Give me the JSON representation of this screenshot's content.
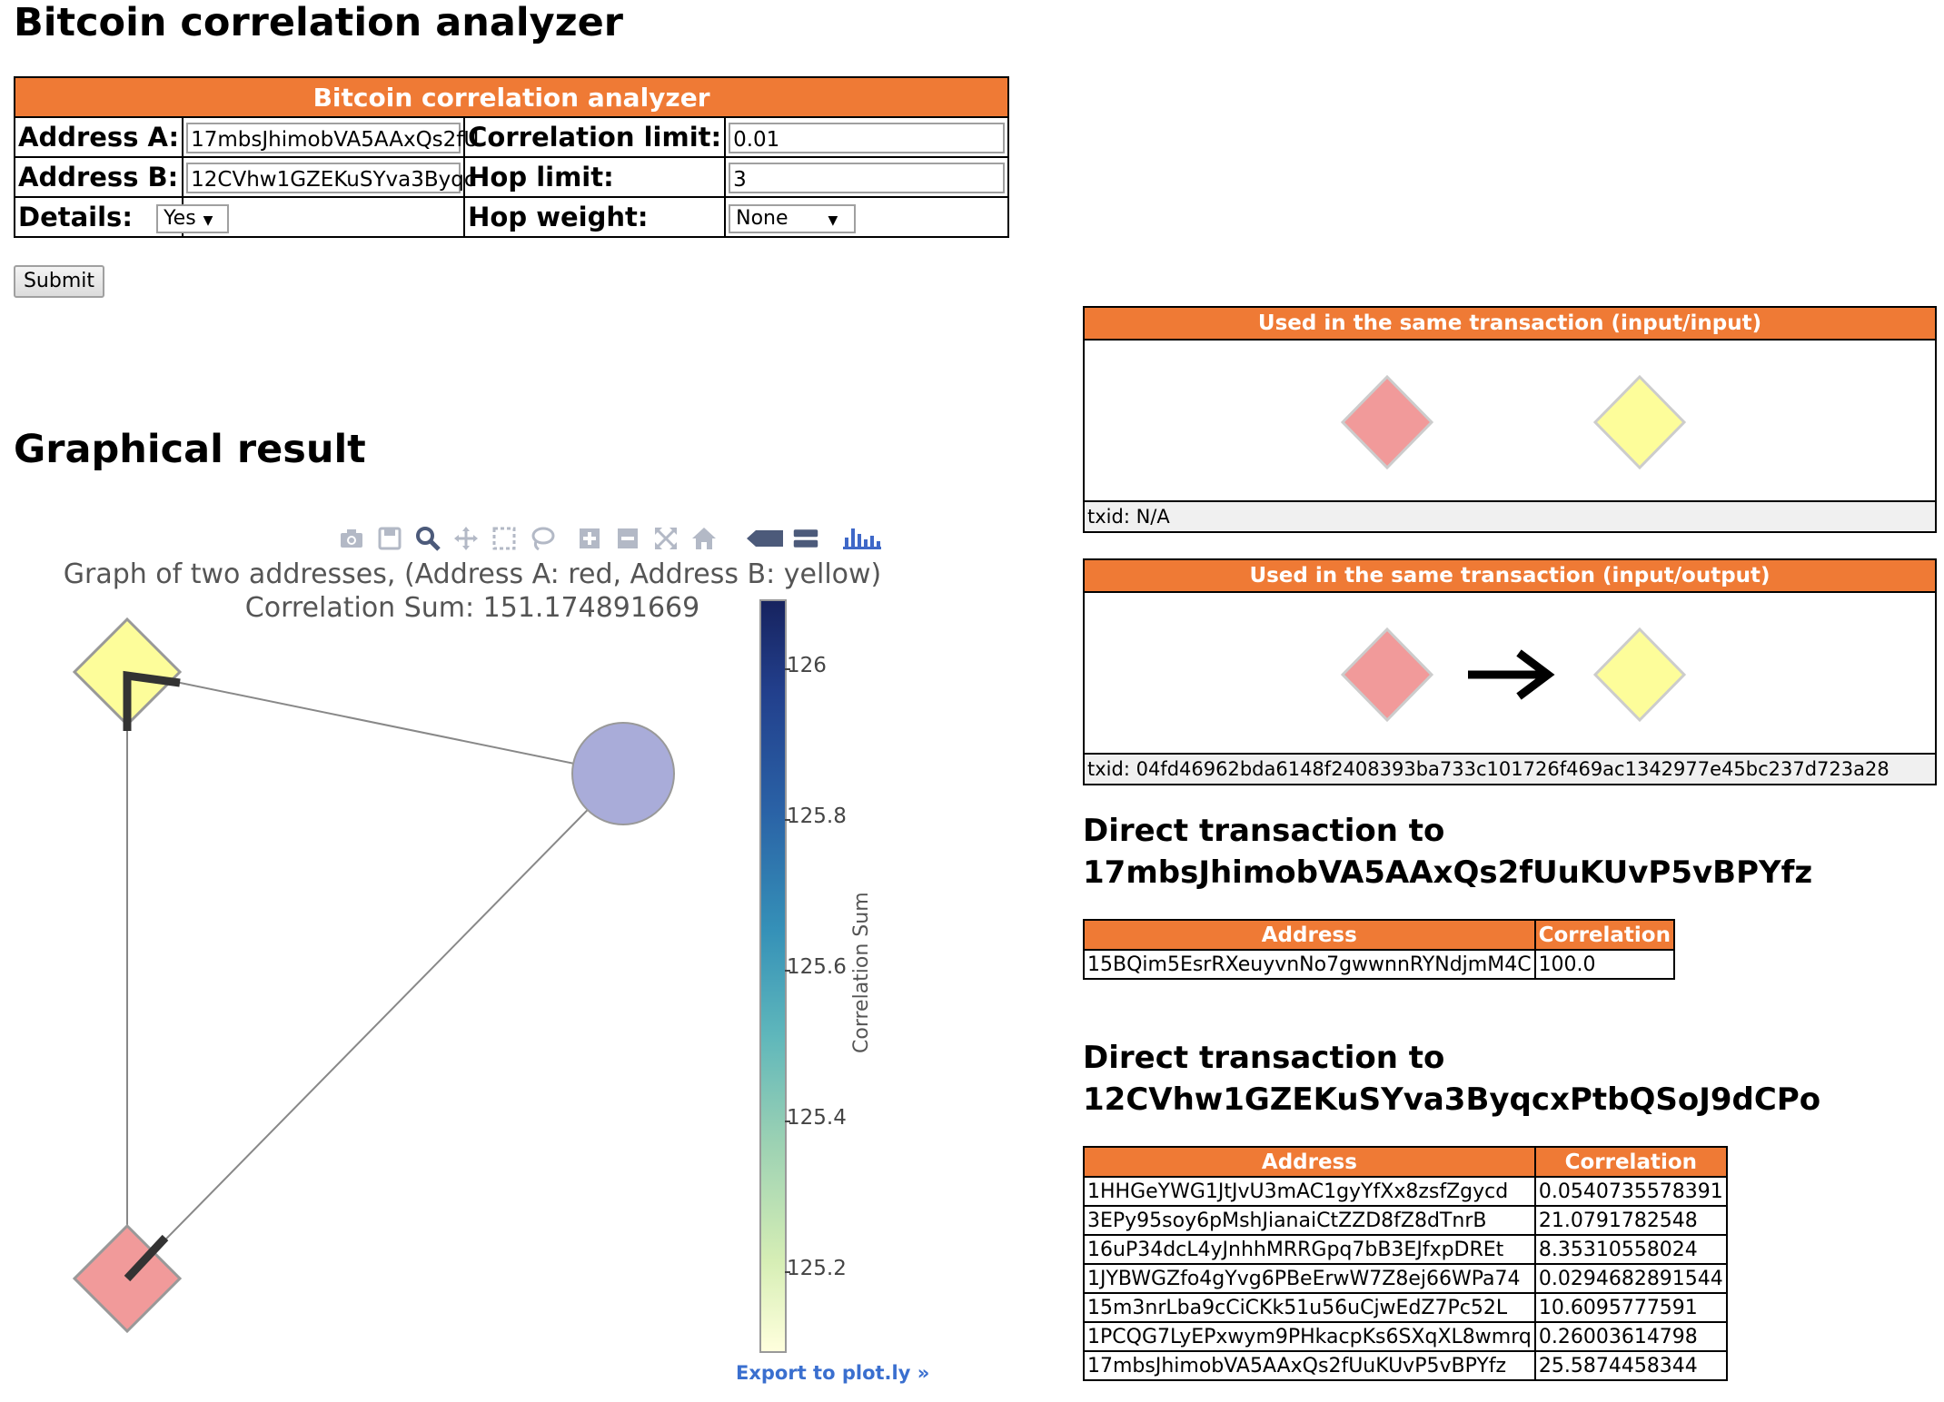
{
  "page": {
    "title": "Bitcoin correlation analyzer",
    "graphical_result_heading": "Graphical result"
  },
  "form": {
    "header": "Bitcoin correlation analyzer",
    "address_a_label": "Address A:",
    "address_a_value": "17mbsJhimobVA5AAxQs2fU",
    "address_b_label": "Address B:",
    "address_b_value": "12CVhw1GZEKuSYva3Byqc",
    "details_label": "Details:",
    "details_value": "Yes",
    "correlation_limit_label": "Correlation limit:",
    "correlation_limit_value": "0.01",
    "hop_limit_label": "Hop limit:",
    "hop_limit_value": "3",
    "hop_weight_label": "Hop weight:",
    "hop_weight_value": "None",
    "submit_label": "Submit"
  },
  "plot": {
    "toolbar_icons": [
      "camera-icon",
      "save-icon",
      "zoom-icon",
      "pan-icon",
      "box-select-icon",
      "lasso-icon",
      "zoom-in-icon",
      "zoom-out-icon",
      "autoscale-icon",
      "reset-axes-icon",
      "hover-closest-icon",
      "hover-compare-icon",
      "plotly-logo-icon"
    ],
    "title_line1": "Graph of two addresses, (Address A: red, Address B: yellow)",
    "title_line2": "Correlation Sum: 151.174891669",
    "colorbar_title": "Correlation Sum",
    "colorbar_ticks": [
      "126",
      "125.8",
      "125.6",
      "125.4",
      "125.2"
    ],
    "export_link": "Export to plot.ly »",
    "node_colors": {
      "address_a": "#f19a9a",
      "address_b": "#fdfd9a",
      "intermediate": "#a9acd9"
    }
  },
  "panels": {
    "input_input": {
      "header": "Used in the same transaction (input/input)",
      "txid": "txid: N/A"
    },
    "input_output": {
      "header": "Used in the same transaction (input/output)",
      "txid": "txid: 04fd46962bda6148f2408393ba733c101726f469ac1342977e45bc237d723a28"
    }
  },
  "direct_a": {
    "heading_line1": "Direct transaction to",
    "heading_line2": "17mbsJhimobVA5AAxQs2fUuKUvP5vBPYfz",
    "columns": [
      "Address",
      "Correlation"
    ],
    "rows": [
      [
        "15BQim5EsrRXeuyvnNo7gwwnnRYNdjmM4C",
        "100.0"
      ]
    ]
  },
  "direct_b": {
    "heading_line1": "Direct transaction to",
    "heading_line2": "12CVhw1GZEKuSYva3ByqcxPtbQSoJ9dCPo",
    "columns": [
      "Address",
      "Correlation"
    ],
    "rows": [
      [
        "1HHGeYWG1JtJvU3mAC1gyYfXx8zsfZgycd",
        "0.0540735578391"
      ],
      [
        "3EPy95soy6pMshJianaiCtZZD8fZ8dTnrB",
        "21.0791782548"
      ],
      [
        "16uP34dcL4yJnhhMRRGpq7bB3EJfxpDREt",
        "8.35310558024"
      ],
      [
        "1JYBWGZfo4gYvg6PBeErwW7Z8ej66WPa74",
        "0.0294682891544"
      ],
      [
        "15m3nrLba9cCiCKk51u56uCjwEdZ7Pc52L",
        "10.6095777591"
      ],
      [
        "1PCQG7LyEPxwym9PHkacpKs6SXqXL8wmrq",
        "0.26003614798"
      ],
      [
        "17mbsJhimobVA5AAxQs2fUuKUvP5vBPYfz",
        "25.5874458344"
      ]
    ]
  }
}
